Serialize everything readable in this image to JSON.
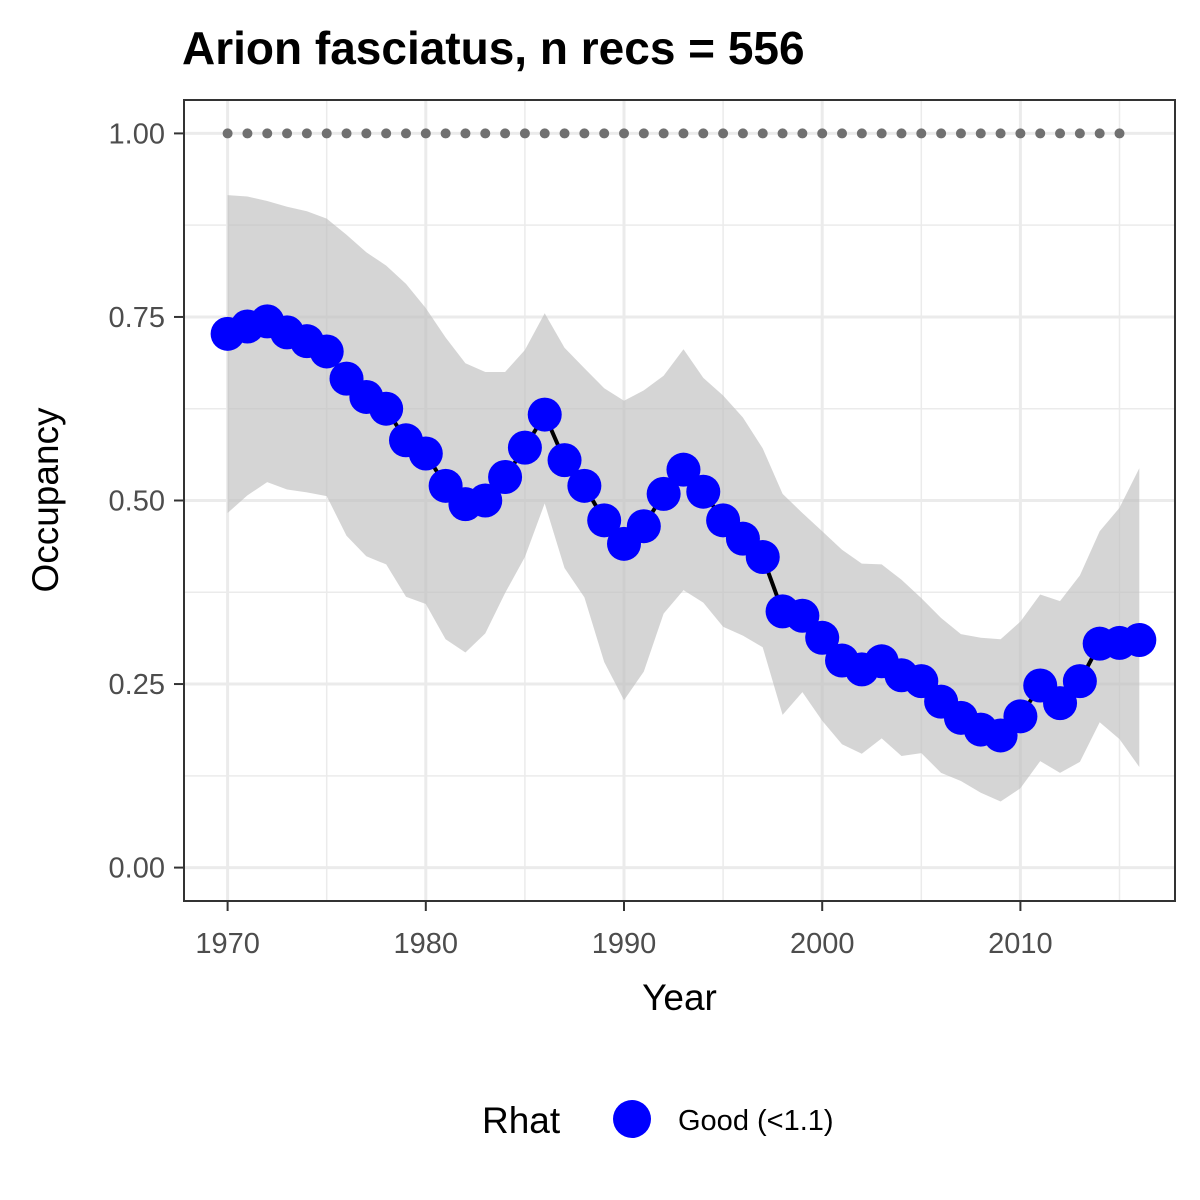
{
  "chart_data": {
    "type": "line",
    "title": "Arion fasciatus, n recs = 556",
    "xlabel": "Year",
    "ylabel": "Occupancy",
    "xlim": [
      1967.8,
      2017.8
    ],
    "ylim": [
      -0.0455,
      1.0455
    ],
    "x_ticks": [
      1970,
      1980,
      1990,
      2000,
      2010
    ],
    "y_ticks": [
      0,
      0.25,
      0.5,
      0.75,
      1.0
    ],
    "x_tick_labels": [
      "1970",
      "1980",
      "1990",
      "2000",
      "2010"
    ],
    "y_tick_labels": [
      "0.00",
      "0.25",
      "0.50",
      "0.75",
      "1.00"
    ],
    "x_minor_ticks": [
      1975,
      1985,
      1995,
      2005,
      2015
    ],
    "y_minor_ticks": [
      0.125,
      0.375,
      0.625,
      0.875
    ],
    "grid": true,
    "x": [
      1970,
      1971,
      1972,
      1973,
      1974,
      1975,
      1976,
      1977,
      1978,
      1979,
      1980,
      1981,
      1982,
      1983,
      1984,
      1985,
      1986,
      1987,
      1988,
      1989,
      1990,
      1991,
      1992,
      1993,
      1994,
      1995,
      1996,
      1997,
      1998,
      1999,
      2000,
      2001,
      2002,
      2003,
      2004,
      2005,
      2006,
      2007,
      2008,
      2009,
      2010,
      2011,
      2012,
      2013,
      2014,
      2015,
      2016
    ],
    "series": [
      {
        "type": "line+points",
        "color": "#0000ff",
        "line_color": "#000000",
        "values": [
          0.727,
          0.737,
          0.744,
          0.729,
          0.717,
          0.703,
          0.666,
          0.641,
          0.625,
          0.582,
          0.564,
          0.52,
          0.495,
          0.5,
          0.532,
          0.572,
          0.617,
          0.555,
          0.52,
          0.473,
          0.441,
          0.465,
          0.509,
          0.542,
          0.512,
          0.473,
          0.448,
          0.423,
          0.349,
          0.343,
          0.313,
          0.282,
          0.27,
          0.281,
          0.262,
          0.254,
          0.226,
          0.204,
          0.188,
          0.18,
          0.206,
          0.248,
          0.224,
          0.254,
          0.305,
          0.306,
          0.31
        ]
      },
      {
        "type": "dotted",
        "color": "#707070",
        "x": [
          1970,
          1971,
          1972,
          1973,
          1974,
          1975,
          1976,
          1977,
          1978,
          1979,
          1980,
          1981,
          1982,
          1983,
          1984,
          1985,
          1986,
          1987,
          1988,
          1989,
          1990,
          1991,
          1992,
          1993,
          1994,
          1995,
          1996,
          1997,
          1998,
          1999,
          2000,
          2001,
          2002,
          2003,
          2004,
          2005,
          2006,
          2007,
          2008,
          2009,
          2010,
          2011,
          2012,
          2013,
          2014,
          2015
        ],
        "value": 1.0
      }
    ],
    "band": {
      "color": "#bfbfbf",
      "opacity": 0.65,
      "upper": [
        0.916,
        0.914,
        0.908,
        0.9,
        0.894,
        0.884,
        0.862,
        0.838,
        0.82,
        0.795,
        0.762,
        0.722,
        0.687,
        0.675,
        0.675,
        0.705,
        0.755,
        0.708,
        0.68,
        0.653,
        0.636,
        0.65,
        0.67,
        0.706,
        0.667,
        0.643,
        0.613,
        0.571,
        0.509,
        0.483,
        0.458,
        0.433,
        0.414,
        0.413,
        0.392,
        0.367,
        0.34,
        0.318,
        0.313,
        0.311,
        0.335,
        0.372,
        0.363,
        0.398,
        0.458,
        0.49,
        0.544
      ],
      "lower": [
        0.483,
        0.507,
        0.525,
        0.515,
        0.511,
        0.506,
        0.452,
        0.424,
        0.413,
        0.369,
        0.359,
        0.311,
        0.293,
        0.319,
        0.374,
        0.423,
        0.496,
        0.408,
        0.368,
        0.28,
        0.228,
        0.267,
        0.346,
        0.378,
        0.361,
        0.328,
        0.316,
        0.3,
        0.208,
        0.239,
        0.2,
        0.168,
        0.155,
        0.176,
        0.152,
        0.156,
        0.129,
        0.118,
        0.102,
        0.09,
        0.108,
        0.145,
        0.129,
        0.144,
        0.198,
        0.175,
        0.137
      ]
    },
    "legend": {
      "title": "Rhat",
      "placement": "bottom",
      "items": [
        {
          "label": "Good (<1.1)",
          "color": "#0000ff"
        }
      ]
    }
  }
}
